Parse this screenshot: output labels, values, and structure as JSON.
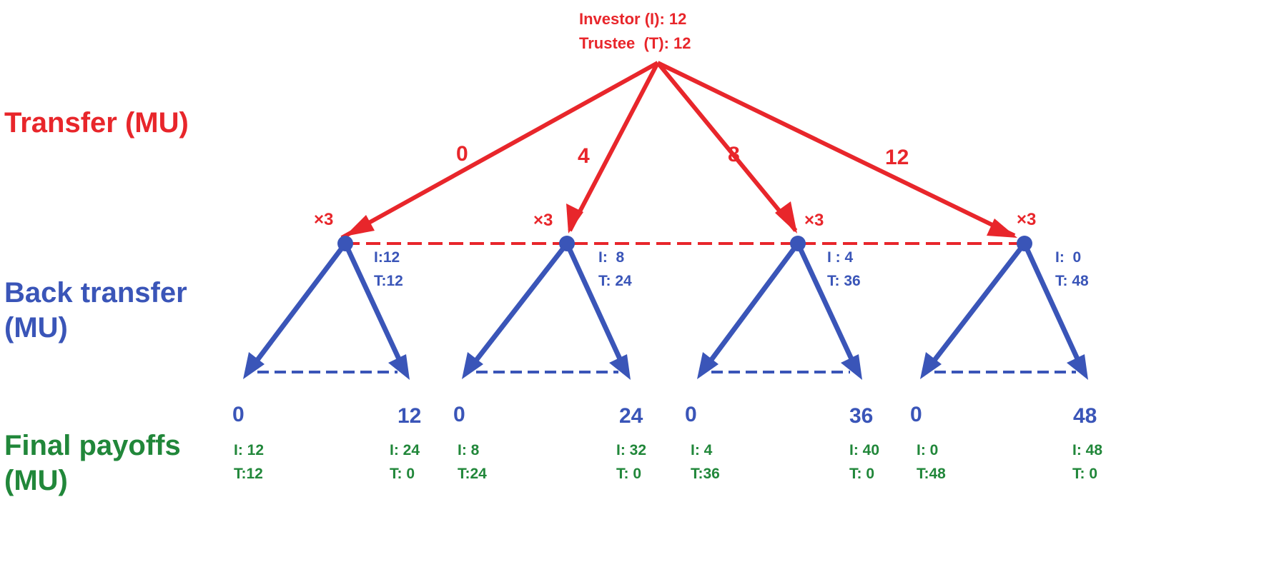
{
  "colors": {
    "investor": "#e8262b",
    "trustee": "#3a55b8",
    "payoff": "#21873a"
  },
  "row_labels": {
    "transfer": "Transfer (MU)",
    "back_transfer_1": "Back transfer",
    "back_transfer_2": "(MU)",
    "final_payoffs_1": "Final payoffs",
    "final_payoffs_2": "(MU)"
  },
  "root": {
    "investor": "Investor (I): 12",
    "trustee": "Trustee  (T): 12"
  },
  "branches": [
    {
      "transfer": "0",
      "multiplier": "×3",
      "node_i": "I:12",
      "node_t": "T:12",
      "back_low": "0",
      "back_high": "12",
      "pay_low_i": "I: 12",
      "pay_low_t": "T:12",
      "pay_high_i": "I: 24",
      "pay_high_t": "T: 0"
    },
    {
      "transfer": "4",
      "multiplier": "×3",
      "node_i": "I:  8",
      "node_t": "T: 24",
      "back_low": "0",
      "back_high": "24",
      "pay_low_i": "I: 8",
      "pay_low_t": "T:24",
      "pay_high_i": "I: 32",
      "pay_high_t": "T: 0"
    },
    {
      "transfer": "8",
      "multiplier": "×3",
      "node_i": "I : 4",
      "node_t": "T: 36",
      "back_low": "0",
      "back_high": "36",
      "pay_low_i": "I: 4",
      "pay_low_t": "T:36",
      "pay_high_i": "I: 40",
      "pay_high_t": "T: 0"
    },
    {
      "transfer": "12",
      "multiplier": "×3",
      "node_i": "I:  0",
      "node_t": "T: 48",
      "back_low": "0",
      "back_high": "48",
      "pay_low_i": "I: 0",
      "pay_low_t": "T:48",
      "pay_high_i": "I: 48",
      "pay_high_t": "T: 0"
    }
  ]
}
